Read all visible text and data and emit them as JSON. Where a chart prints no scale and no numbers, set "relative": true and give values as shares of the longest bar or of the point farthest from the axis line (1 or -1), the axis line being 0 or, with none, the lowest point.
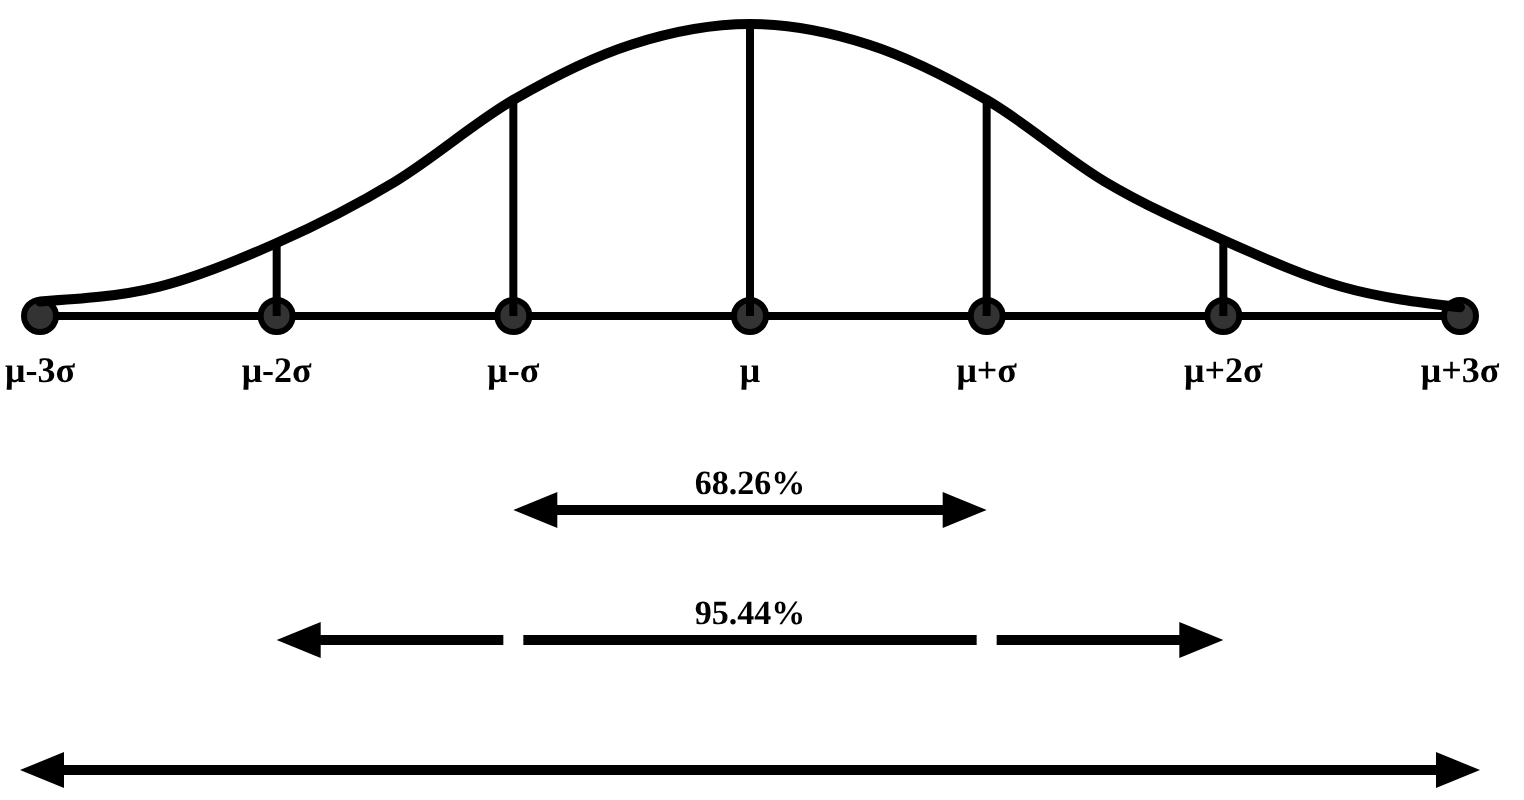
{
  "chart_data": {
    "type": "line",
    "relative": true,
    "categories": [
      "μ-3σ",
      null,
      "μ-2σ",
      null,
      "μ-σ",
      null,
      "μ",
      null,
      "μ+σ",
      null,
      "μ+2σ",
      null,
      "μ+3σ"
    ],
    "series": [
      {
        "color": "#000000",
        "values": [
          0.05,
          0.1,
          0.25,
          0.46,
          0.74,
          0.93,
          1,
          0.93,
          0.74,
          0.46,
          0.26,
          0.1,
          0.03
        ]
      },
      {
        "type": "bar",
        "color": "#000000",
        "values": [
          null,
          null,
          0.25,
          null,
          0.74,
          null,
          1,
          null,
          0.74,
          null,
          0.26,
          null,
          null
        ]
      }
    ],
    "annotations": [
      "68.26%",
      "95.44%"
    ]
  }
}
